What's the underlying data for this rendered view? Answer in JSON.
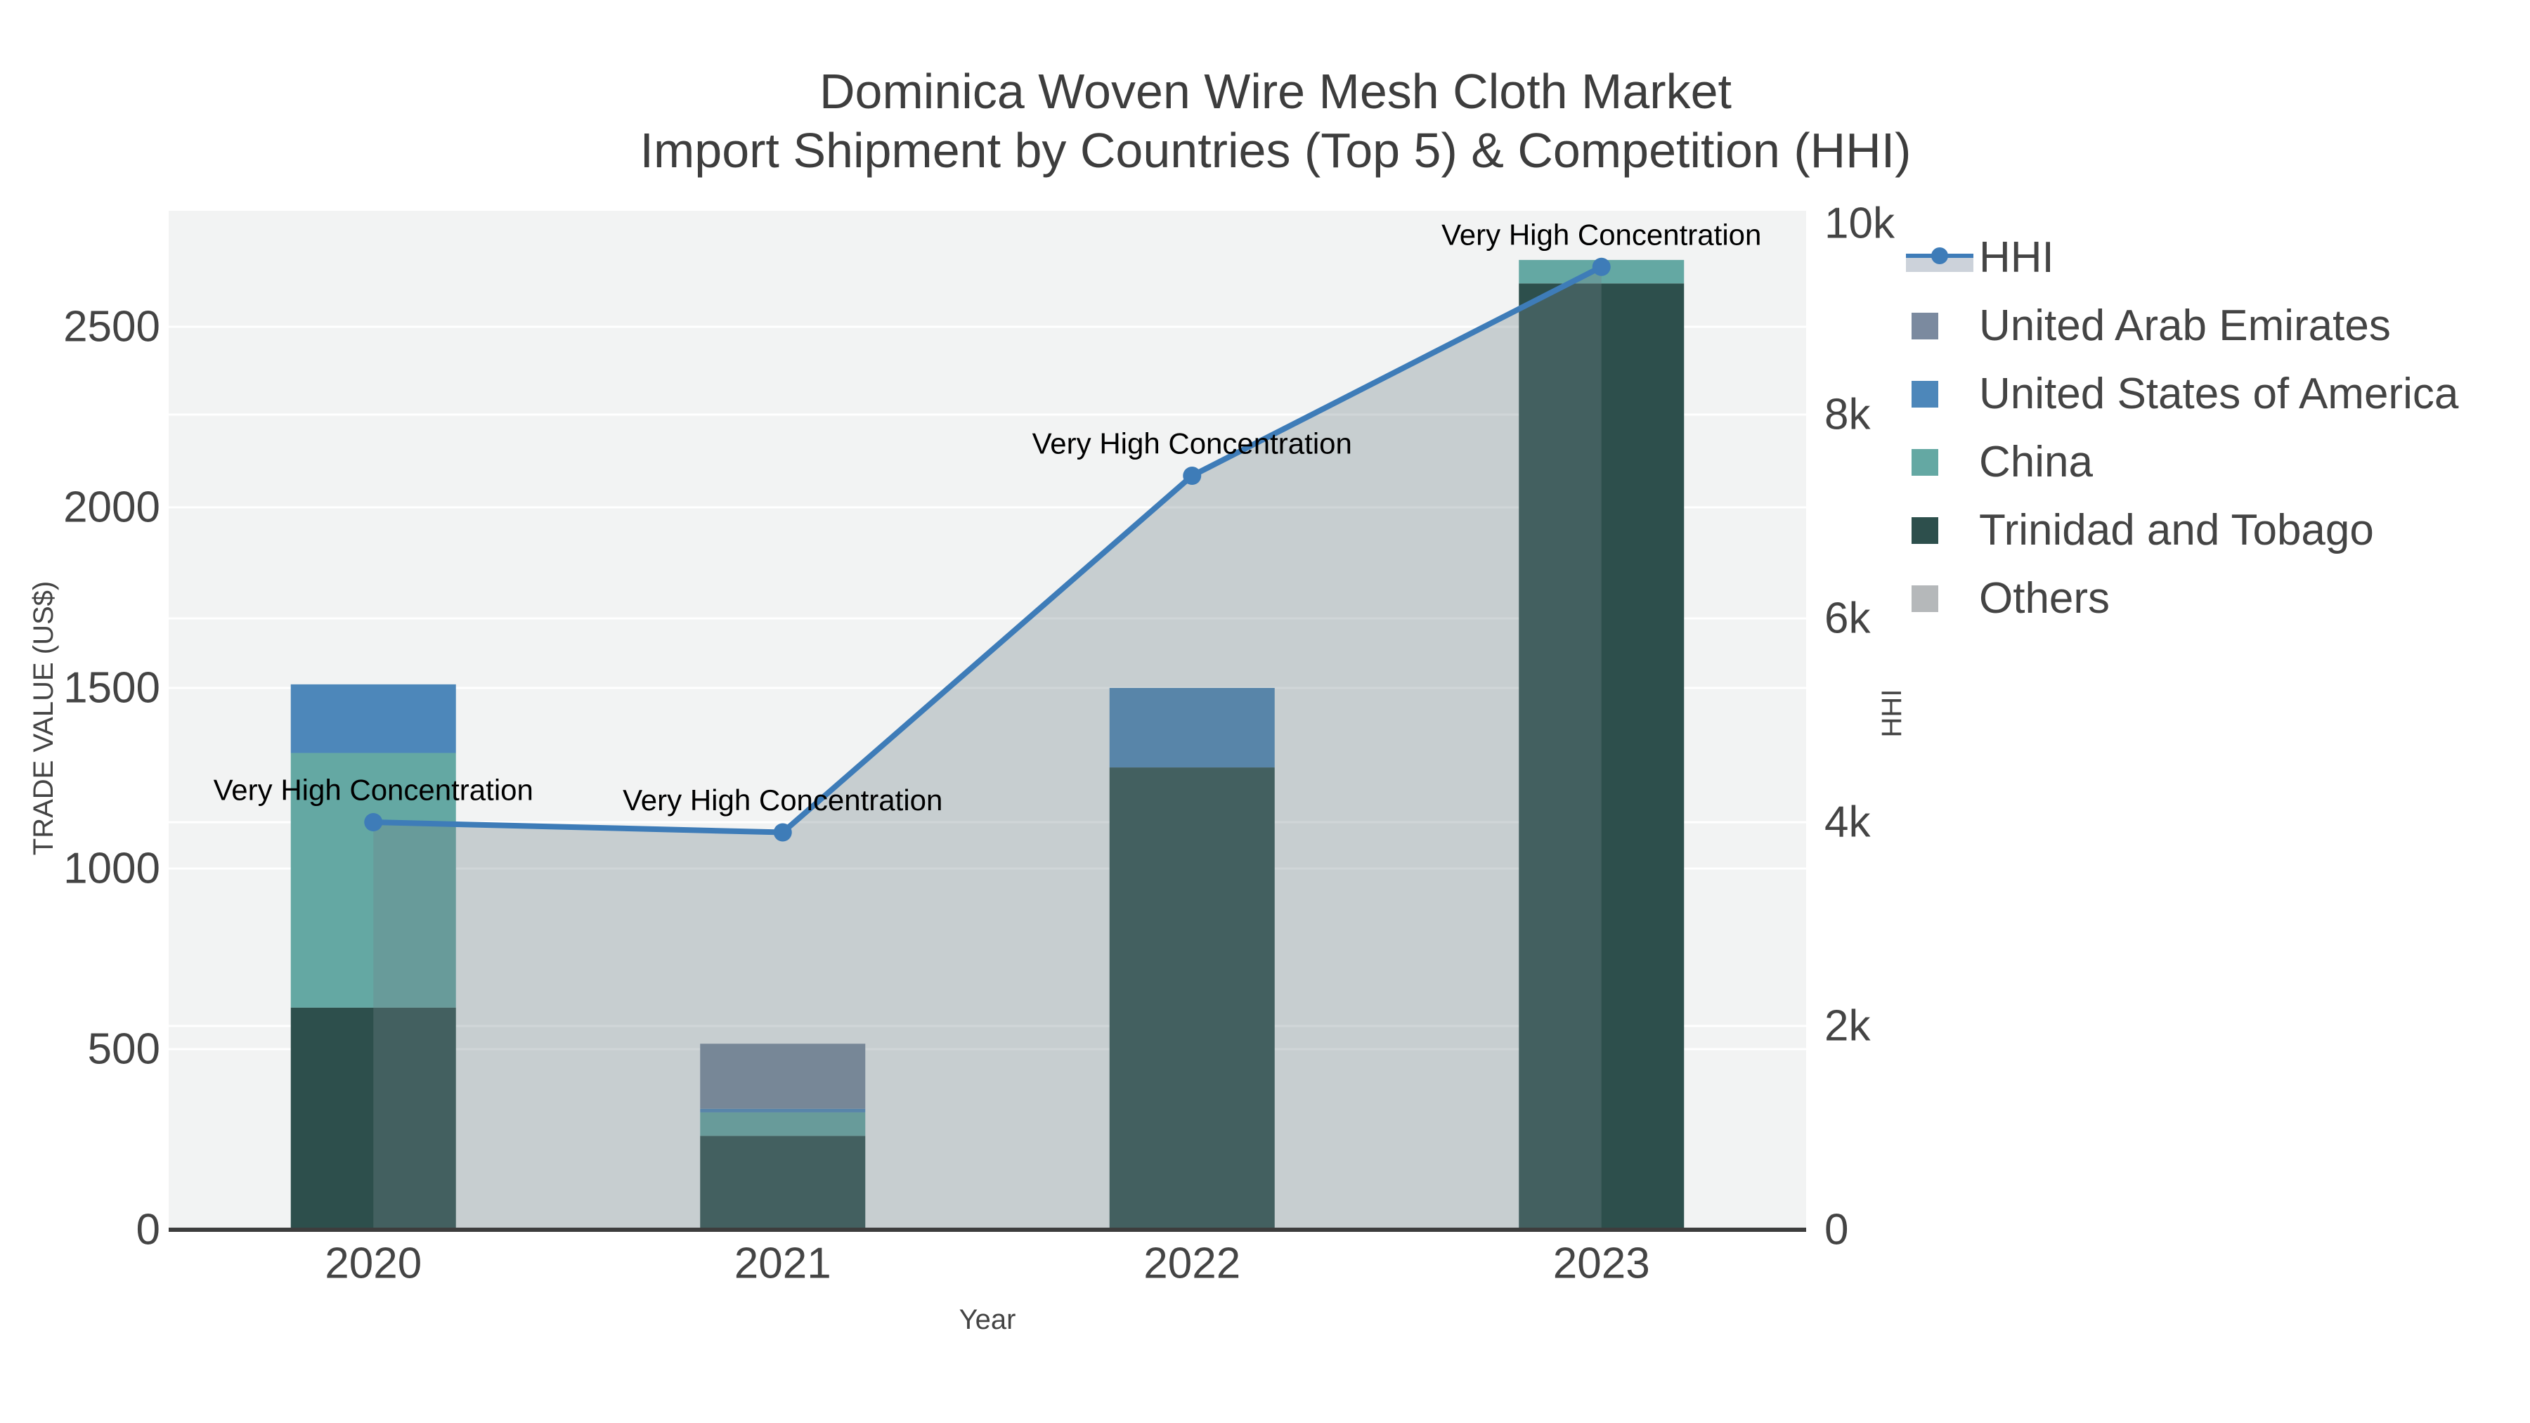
{
  "title": {
    "line1": "Dominica Woven Wire Mesh Cloth Market",
    "line2": "Import Shipment by Countries (Top 5) & Competition (HHI)"
  },
  "legend": {
    "items": [
      {
        "label": "HHI",
        "type": "line",
        "color": "#3e7cb8",
        "band_color": "#ccd2da"
      },
      {
        "label": "United Arab Emirates",
        "type": "square",
        "color": "#7b8a9f"
      },
      {
        "label": "United States of America",
        "type": "square",
        "color": "#4d87ba"
      },
      {
        "label": "China",
        "type": "square",
        "color": "#64a8a3"
      },
      {
        "label": "Trinidad and Tobago",
        "type": "square",
        "color": "#2d4f4c"
      },
      {
        "label": "Others",
        "type": "square",
        "color": "#b5b8ba"
      }
    ]
  },
  "chart_data": {
    "type": "bar",
    "subtype": "stacked-bars-with-line-area-combo",
    "title": "Dominica Woven Wire Mesh Cloth Market Import Shipment by Countries (Top 5) & Competition (HHI)",
    "categories": [
      "2020",
      "2021",
      "2022",
      "2023"
    ],
    "series": [
      {
        "name": "United Arab Emirates",
        "color": "#7b8a9f",
        "values": [
          0,
          180,
          0,
          0
        ]
      },
      {
        "name": "United States of America",
        "color": "#4d87ba",
        "values": [
          190,
          10,
          220,
          0
        ]
      },
      {
        "name": "China",
        "color": "#64a8a3",
        "values": [
          705,
          65,
          0,
          65
        ]
      },
      {
        "name": "Trinidad and Tobago",
        "color": "#2d4f4c",
        "values": [
          615,
          260,
          1280,
          2620
        ]
      },
      {
        "name": "Others",
        "color": "#b5b8ba",
        "values": [
          0,
          0,
          0,
          0
        ]
      }
    ],
    "line_series": {
      "name": "HHI",
      "axis": "right",
      "values": [
        4000,
        3900,
        7400,
        9450
      ],
      "color": "#3e7cb8",
      "area_color": "rgba(113,131,137,0.33)"
    },
    "annotations": [
      {
        "category": "2020",
        "text": "Very High Concentration"
      },
      {
        "category": "2021",
        "text": "Very High Concentration"
      },
      {
        "category": "2022",
        "text": "Very High Concentration"
      },
      {
        "category": "2023",
        "text": "Very High Concentration"
      }
    ],
    "xlabel": "Year",
    "ylabel": "TRADE VALUE (US$)",
    "y2label": "HHI",
    "y_ticks": {
      "labels": [
        "0",
        "500",
        "1000",
        "1500",
        "2000",
        "2500"
      ],
      "values": [
        0,
        500,
        1000,
        1500,
        2000,
        2500
      ]
    },
    "y2_ticks": {
      "labels": [
        "0",
        "2k",
        "4k",
        "6k",
        "8k",
        "10k"
      ],
      "values": [
        0,
        2000,
        4000,
        6000,
        8000,
        10000
      ]
    },
    "ylim": [
      0,
      2821
    ],
    "y2lim": [
      0,
      10000
    ],
    "grid": true,
    "legend_position": "top-right",
    "plot_bg": "#f2f3f3",
    "grid_color": "#ffffff",
    "axis_line_color": "#3d3d3d",
    "tick_color": "#444444",
    "annotation_color": "#000000"
  }
}
